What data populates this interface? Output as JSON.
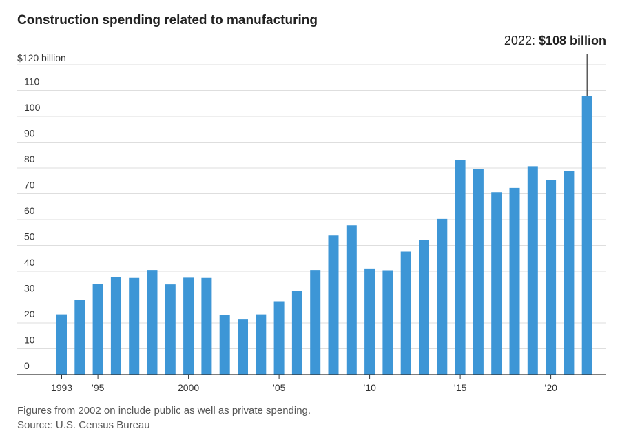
{
  "chart_data": {
    "type": "bar",
    "title": "Construction spending related to manufacturing",
    "y_unit_label": "$120 billion",
    "ylim": [
      0,
      120
    ],
    "y_ticks": [
      0,
      10,
      20,
      30,
      40,
      50,
      60,
      70,
      80,
      90,
      100,
      110
    ],
    "x_tick_labels": [
      {
        "year": 1993,
        "label": "1993"
      },
      {
        "year": 1995,
        "label": "’95"
      },
      {
        "year": 2000,
        "label": "2000"
      },
      {
        "year": 2005,
        "label": "’05"
      },
      {
        "year": 2010,
        "label": "’10"
      },
      {
        "year": 2015,
        "label": "’15"
      },
      {
        "year": 2020,
        "label": "’20"
      }
    ],
    "x": [
      1993,
      1994,
      1995,
      1996,
      1997,
      1998,
      1999,
      2000,
      2001,
      2002,
      2003,
      2004,
      2005,
      2006,
      2007,
      2008,
      2009,
      2010,
      2011,
      2012,
      2013,
      2014,
      2015,
      2016,
      2017,
      2018,
      2019,
      2020,
      2021,
      2022
    ],
    "values": [
      23.3,
      28.8,
      35.1,
      37.7,
      37.4,
      40.5,
      34.9,
      37.5,
      37.4,
      23.0,
      21.3,
      23.3,
      28.4,
      32.3,
      40.5,
      53.8,
      57.8,
      41.1,
      40.4,
      47.6,
      52.2,
      60.3,
      83.0,
      79.5,
      70.6,
      72.3,
      80.7,
      75.4,
      78.9,
      108.0
    ],
    "bar_color": "#3d96d6",
    "annotation": {
      "year": 2022,
      "prefix": "2022: ",
      "value_text": "$108 billion"
    },
    "grid": true
  },
  "footer": {
    "note": "Figures from 2002 on include public as well as private spending.",
    "source": "Source: U.S. Census Bureau"
  }
}
